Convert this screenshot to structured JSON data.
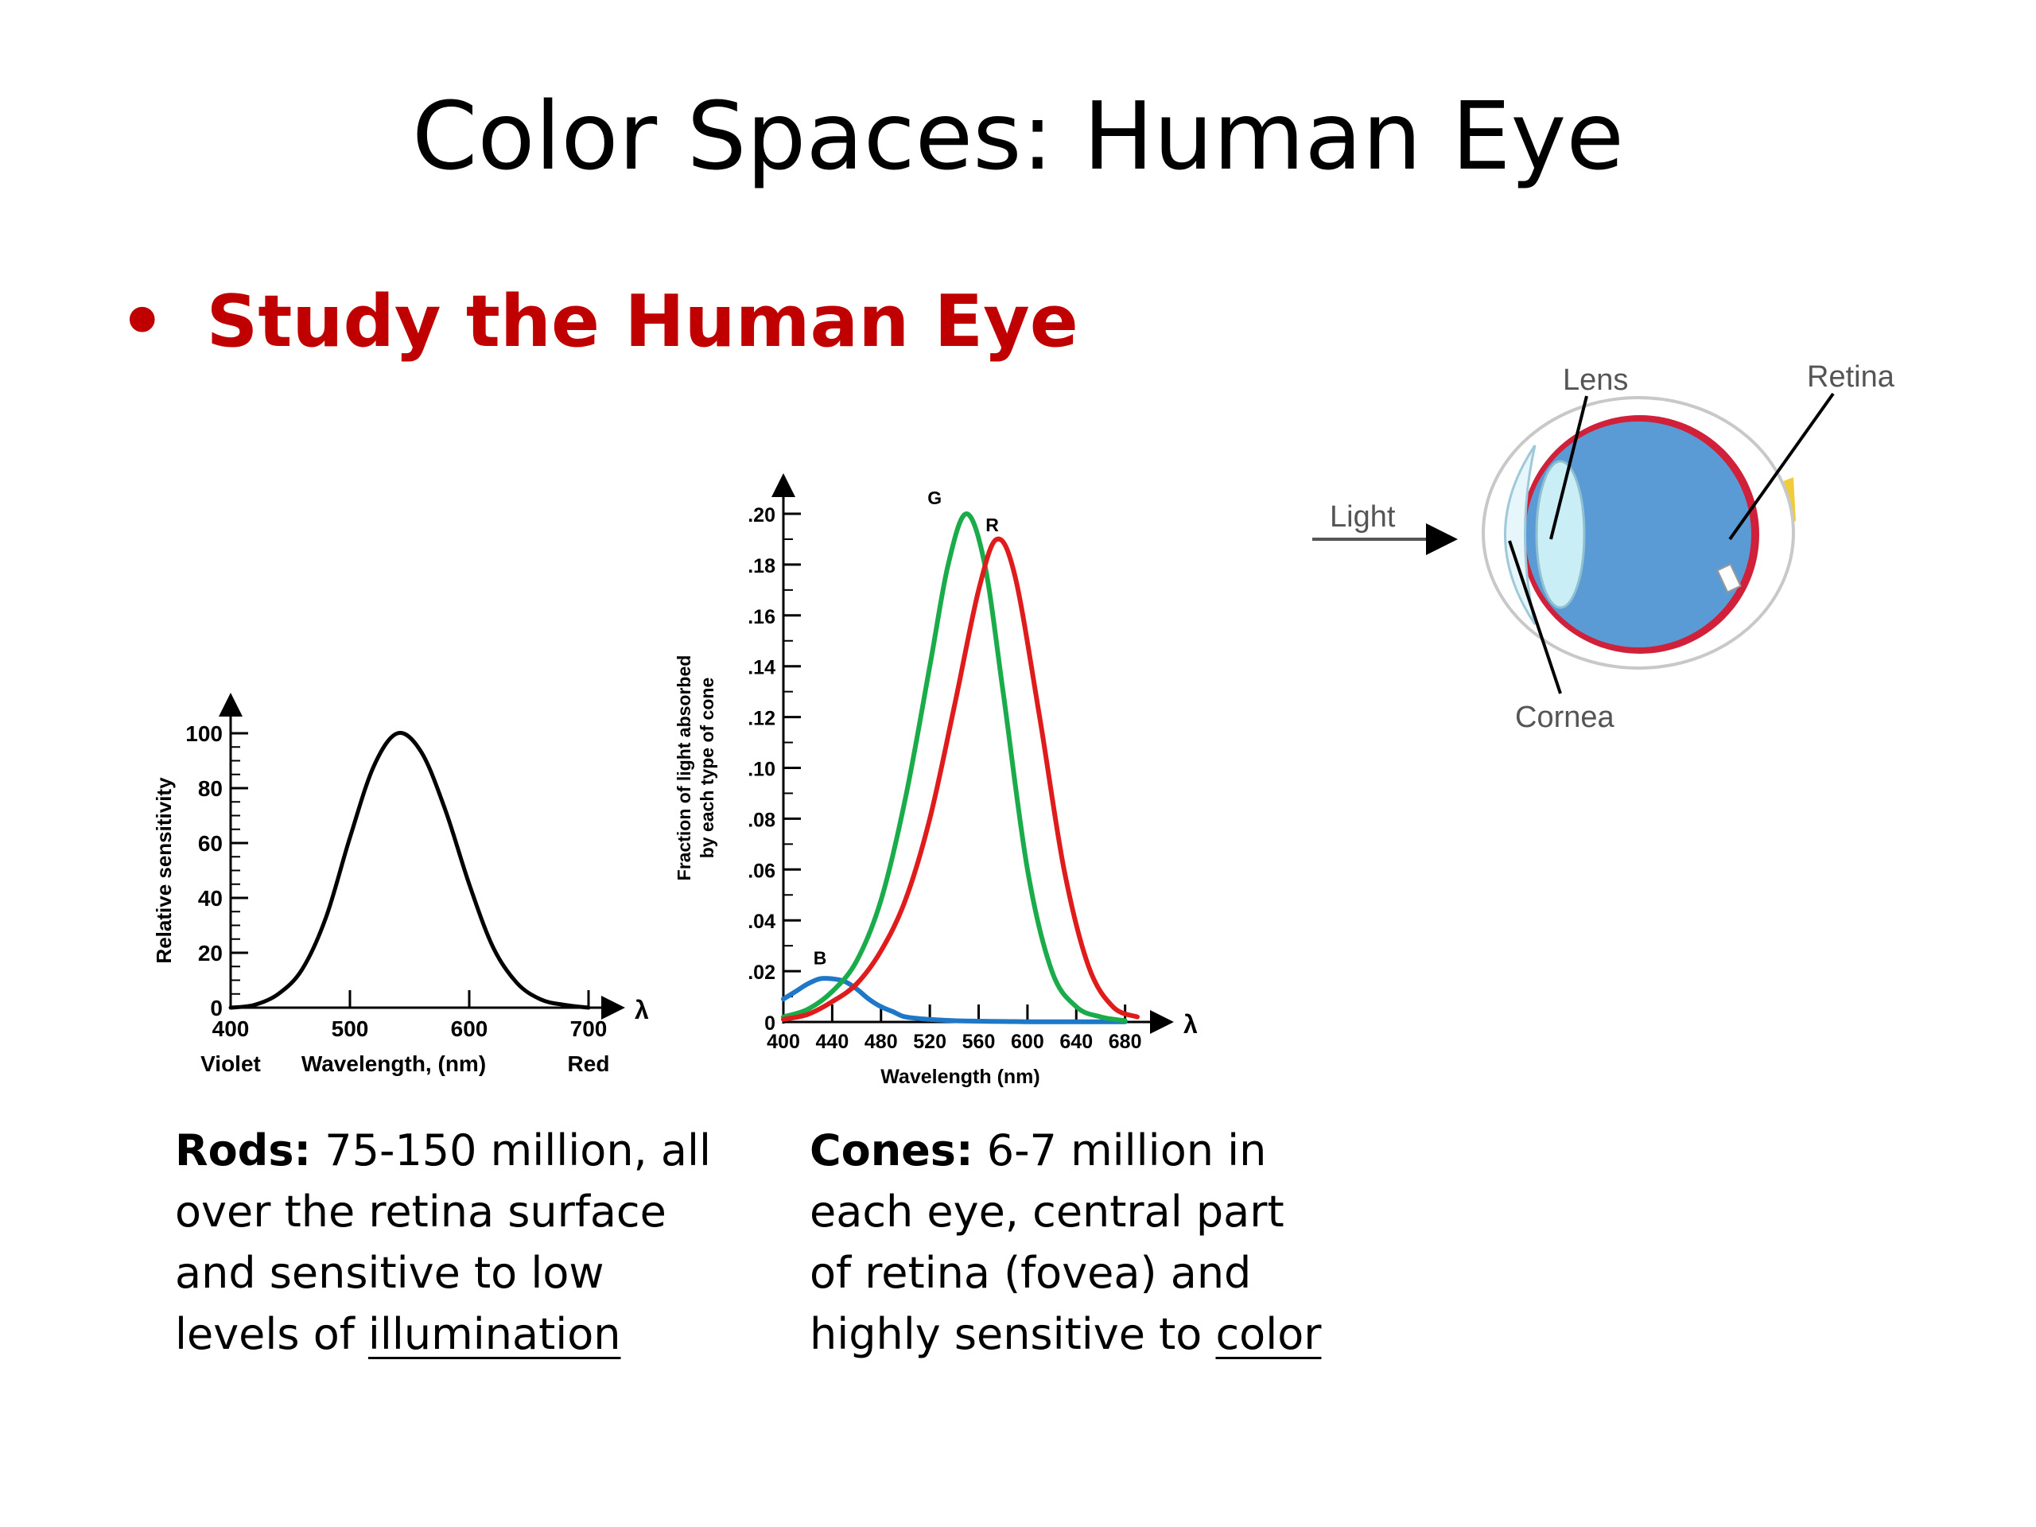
{
  "slide": {
    "title": "Color Spaces: Human Eye",
    "bullet": "Study the Human Eye",
    "bullet_color": "#c00000"
  },
  "chart_data": [
    {
      "type": "line",
      "name": "rods-sensitivity",
      "title": "",
      "xlabel": "Wavelength, (nm)",
      "ylabel": "Relative sensitivity",
      "x_axis_symbol": "λ",
      "xlim": [
        400,
        700
      ],
      "ylim": [
        0,
        100
      ],
      "x_ticks": [
        400,
        500,
        600,
        700
      ],
      "x_tick_labels": [
        "400",
        "500",
        "600",
        "700"
      ],
      "x_end_labels": {
        "left": "Violet",
        "right": "Red"
      },
      "y_ticks": [
        0,
        20,
        40,
        60,
        80,
        100
      ],
      "y_tick_labels": [
        "0",
        "20",
        "40",
        "60",
        "80",
        "100"
      ],
      "grid": false,
      "series": [
        {
          "color": "#000000",
          "x": [
            400,
            420,
            440,
            460,
            480,
            500,
            520,
            540,
            560,
            580,
            600,
            620,
            640,
            660,
            680,
            700
          ],
          "y": [
            0,
            1,
            5,
            14,
            33,
            62,
            88,
            100,
            93,
            72,
            45,
            22,
            9,
            3,
            1,
            0
          ]
        }
      ]
    },
    {
      "type": "line",
      "name": "cones-absorption",
      "title": "",
      "xlabel": "Wavelength (nm)",
      "ylabel": "Fraction of light absorbed by each type of cone",
      "ylabel_lines": [
        "Fraction of light absorbed",
        "by each type of cone"
      ],
      "x_axis_symbol": "λ",
      "xlim": [
        400,
        690
      ],
      "ylim": [
        0,
        0.2
      ],
      "x_ticks": [
        400,
        440,
        480,
        520,
        560,
        600,
        640,
        680
      ],
      "x_tick_labels": [
        "400",
        "440",
        "480",
        "520",
        "560",
        "600",
        "640",
        "680"
      ],
      "y_ticks": [
        0,
        0.02,
        0.04,
        0.06,
        0.08,
        0.1,
        0.12,
        0.14,
        0.16,
        0.18,
        0.2
      ],
      "y_tick_labels": [
        "0",
        ".02",
        ".04",
        ".06",
        ".08",
        ".10",
        ".12",
        ".14",
        ".16",
        ".18",
        ".20"
      ],
      "grid": false,
      "series": [
        {
          "name": "B",
          "color": "#1f77c8",
          "x": [
            400,
            410,
            420,
            430,
            440,
            450,
            460,
            470,
            480,
            490,
            500,
            520,
            540,
            560,
            580,
            600,
            620,
            640,
            660,
            680
          ],
          "y": [
            0.009,
            0.012,
            0.015,
            0.017,
            0.017,
            0.016,
            0.013,
            0.009,
            0.006,
            0.004,
            0.002,
            0.001,
            0.0005,
            0.0003,
            0.0002,
            0.0001,
            0.0001,
            0.0001,
            0.0001,
            0.0001
          ]
        },
        {
          "name": "G",
          "color": "#1aab4a",
          "x": [
            400,
            420,
            440,
            460,
            480,
            500,
            520,
            535,
            550,
            565,
            580,
            600,
            620,
            640,
            660,
            680
          ],
          "y": [
            0.002,
            0.005,
            0.012,
            0.024,
            0.048,
            0.088,
            0.14,
            0.18,
            0.2,
            0.18,
            0.13,
            0.06,
            0.02,
            0.006,
            0.002,
            0.0005
          ]
        },
        {
          "name": "R",
          "color": "#e01b1b",
          "x": [
            400,
            420,
            440,
            460,
            480,
            500,
            520,
            540,
            560,
            575,
            590,
            610,
            630,
            650,
            670,
            690
          ],
          "y": [
            0.001,
            0.003,
            0.008,
            0.015,
            0.028,
            0.048,
            0.08,
            0.124,
            0.17,
            0.19,
            0.175,
            0.12,
            0.06,
            0.022,
            0.006,
            0.002
          ]
        }
      ]
    }
  ],
  "eye_diagram": {
    "labels": {
      "light": "Light",
      "lens": "Lens",
      "retina": "Retina",
      "cornea": "Cornea"
    },
    "colors": {
      "eyeball": "#5b9bd5",
      "retina_ring": "#d0203a",
      "lens": "#c9eef5",
      "optic_nerve": "#f0cc3a"
    }
  },
  "descriptions": {
    "rods": {
      "term": "Rods:",
      "line1": " 75-150 million, all",
      "line2": "over the retina surface",
      "line3": "and sensitive to low",
      "line4_prefix": "levels of ",
      "line4_link": "illumination"
    },
    "cones": {
      "term": "Cones:",
      "line1": " 6-7 million in",
      "line2": "each eye, central part",
      "line3": "of retina (fovea) and",
      "line4_prefix": "highly sensitive to ",
      "line4_link": "color"
    }
  }
}
